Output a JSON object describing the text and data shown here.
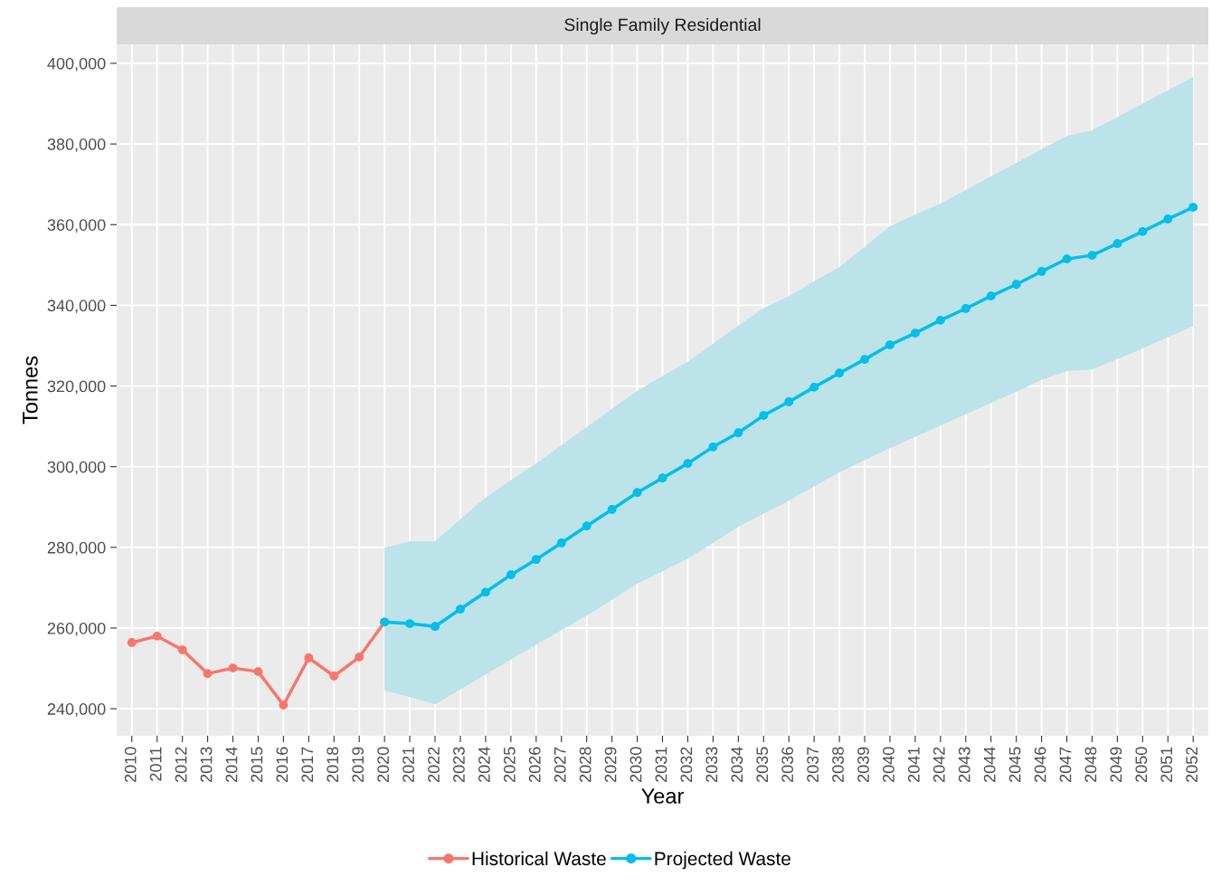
{
  "chart_data": {
    "type": "line",
    "title": "Single Family Residential",
    "xlabel": "Year",
    "ylabel": "Tonnes",
    "categories": [
      "2010",
      "2011",
      "2012",
      "2013",
      "2014",
      "2015",
      "2016",
      "2017",
      "2018",
      "2019",
      "2020",
      "2021",
      "2022",
      "2023",
      "2024",
      "2025",
      "2026",
      "2027",
      "2028",
      "2029",
      "2030",
      "2031",
      "2032",
      "2033",
      "2034",
      "2035",
      "2036",
      "2037",
      "2038",
      "2039",
      "2040",
      "2041",
      "2042",
      "2043",
      "2044",
      "2045",
      "2046",
      "2047",
      "2048",
      "2049",
      "2050",
      "2051",
      "2052"
    ],
    "series": [
      {
        "name": "Historical Waste",
        "color": "#f8766d",
        "values": [
          256400,
          258000,
          254600,
          248700,
          250100,
          249200,
          240900,
          252600,
          248100,
          252800,
          261500,
          null,
          null,
          null,
          null,
          null,
          null,
          null,
          null,
          null,
          null,
          null,
          null,
          null,
          null,
          null,
          null,
          null,
          null,
          null,
          null,
          null,
          null,
          null,
          null,
          null,
          null,
          null,
          null,
          null,
          null,
          null,
          null
        ]
      },
      {
        "name": "Projected Waste",
        "color": "#00bfe8",
        "values": [
          null,
          null,
          null,
          null,
          null,
          null,
          null,
          null,
          null,
          null,
          261500,
          261100,
          260400,
          264700,
          268900,
          273200,
          277000,
          281100,
          285300,
          289400,
          293600,
          297200,
          300800,
          304900,
          308400,
          312700,
          316100,
          319700,
          323200,
          326600,
          330200,
          333100,
          336300,
          339200,
          342300,
          345200,
          348400,
          351500,
          352400,
          355300,
          358300,
          361400,
          364300
        ],
        "lower": [
          null,
          null,
          null,
          null,
          null,
          null,
          null,
          null,
          null,
          null,
          244500,
          242900,
          241100,
          244800,
          248500,
          252200,
          255900,
          259500,
          263100,
          267000,
          271000,
          274100,
          277200,
          281100,
          285100,
          288400,
          291600,
          295100,
          298600,
          301600,
          304600,
          307400,
          310200,
          313000,
          315800,
          318600,
          321500,
          323700,
          324100,
          326700,
          329300,
          332100,
          334900
        ],
        "upper": [
          null,
          null,
          null,
          null,
          null,
          null,
          null,
          null,
          null,
          null,
          279900,
          281500,
          281500,
          287000,
          292300,
          296700,
          300800,
          305300,
          309800,
          314400,
          318800,
          322500,
          326000,
          330500,
          335000,
          339300,
          342300,
          346000,
          349500,
          354500,
          359600,
          362500,
          365200,
          368600,
          372000,
          375300,
          378700,
          382000,
          383400,
          386700,
          390000,
          393300,
          396600
        ]
      }
    ],
    "ylim": [
      233300,
      404700
    ],
    "yticks": [
      {
        "value": 240000,
        "label": "240,000"
      },
      {
        "value": 260000,
        "label": "260,000"
      },
      {
        "value": 280000,
        "label": "280,000"
      },
      {
        "value": 300000,
        "label": "300,000"
      },
      {
        "value": 320000,
        "label": "320,000"
      },
      {
        "value": 340000,
        "label": "340,000"
      },
      {
        "value": 360000,
        "label": "360,000"
      },
      {
        "value": 380000,
        "label": "380,000"
      },
      {
        "value": 400000,
        "label": "400,000"
      }
    ],
    "grid": true,
    "legend": "bottom",
    "marker": "circle",
    "line_style": "solid"
  }
}
